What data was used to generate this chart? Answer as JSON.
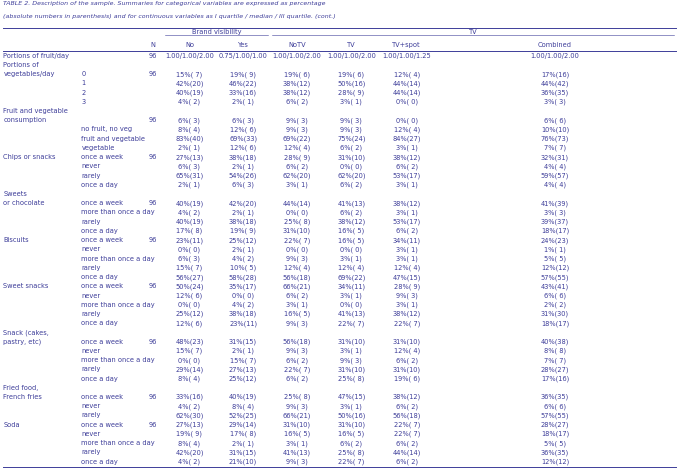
{
  "title_line1": "TABLE 2. Description of the sample. Summaries for categorical variables are expressed as percentage",
  "title_line2": "(absolute numbers in parenthesis) and for continuous variables as I quartile / median / III quartile. (cont.)",
  "rows": [
    [
      "Portions of fruit/day",
      "",
      "96",
      "1.00/1.00/2.00",
      "0.75/1.00/1.00",
      "1.00/1.00/2.00",
      "1.00/1.00/2.00",
      "1.00/1.00/1.25",
      "1.00/1.00/2.00"
    ],
    [
      "Portions of",
      "",
      "",
      "",
      "",
      "",
      "",
      "",
      ""
    ],
    [
      "vegetables/day",
      "0",
      "96",
      "15%( 7)",
      "19%( 9)",
      "19%( 6)",
      "19%( 6)",
      "12%( 4)",
      "17%(16)"
    ],
    [
      "",
      "1",
      "",
      "42%(20)",
      "46%(22)",
      "38%(12)",
      "50%(16)",
      "44%(14)",
      "44%(42)"
    ],
    [
      "",
      "2",
      "",
      "40%(19)",
      "33%(16)",
      "38%(12)",
      "28%( 9)",
      "44%(14)",
      "36%(35)"
    ],
    [
      "",
      "3",
      "",
      "4%( 2)",
      "2%( 1)",
      "6%( 2)",
      "3%( 1)",
      "0%( 0)",
      "3%( 3)"
    ],
    [
      "Fruit and vegetable",
      "",
      "",
      "",
      "",
      "",
      "",
      "",
      ""
    ],
    [
      "consumption",
      "",
      "96",
      "6%( 3)",
      "6%( 3)",
      "9%( 3)",
      "9%( 3)",
      "0%( 0)",
      "6%( 6)"
    ],
    [
      "",
      "no fruit, no veg",
      "",
      "8%( 4)",
      "12%( 6)",
      "9%( 3)",
      "9%( 3)",
      "12%( 4)",
      "10%(10)"
    ],
    [
      "",
      "fruit and vegetable",
      "",
      "83%(40)",
      "69%(33)",
      "69%(22)",
      "75%(24)",
      "84%(27)",
      "76%(73)"
    ],
    [
      "",
      "vegetable",
      "",
      "2%( 1)",
      "12%( 6)",
      "12%( 4)",
      "6%( 2)",
      "3%( 1)",
      "7%( 7)"
    ],
    [
      "Chips or snacks",
      "once a week",
      "96",
      "27%(13)",
      "38%(18)",
      "28%( 9)",
      "31%(10)",
      "38%(12)",
      "32%(31)"
    ],
    [
      "",
      "never",
      "",
      "6%( 3)",
      "2%( 1)",
      "6%( 2)",
      "0%( 0)",
      "6%( 2)",
      "4%( 4)"
    ],
    [
      "",
      "rarely",
      "",
      "65%(31)",
      "54%(26)",
      "62%(20)",
      "62%(20)",
      "53%(17)",
      "59%(57)"
    ],
    [
      "",
      "once a day",
      "",
      "2%( 1)",
      "6%( 3)",
      "3%( 1)",
      "6%( 2)",
      "3%( 1)",
      "4%( 4)"
    ],
    [
      "Sweets",
      "",
      "",
      "",
      "",
      "",
      "",
      "",
      ""
    ],
    [
      "or chocolate",
      "once a week",
      "96",
      "40%(19)",
      "42%(20)",
      "44%(14)",
      "41%(13)",
      "38%(12)",
      "41%(39)"
    ],
    [
      "",
      "more than once a day",
      "",
      "4%( 2)",
      "2%( 1)",
      "0%( 0)",
      "6%( 2)",
      "3%( 1)",
      "3%( 3)"
    ],
    [
      "",
      "rarely",
      "",
      "40%(19)",
      "38%(18)",
      "25%( 8)",
      "38%(12)",
      "53%(17)",
      "39%(37)"
    ],
    [
      "",
      "once a day",
      "",
      "17%( 8)",
      "19%( 9)",
      "31%(10)",
      "16%( 5)",
      "6%( 2)",
      "18%(17)"
    ],
    [
      "Biscuits",
      "once a week",
      "96",
      "23%(11)",
      "25%(12)",
      "22%( 7)",
      "16%( 5)",
      "34%(11)",
      "24%(23)"
    ],
    [
      "",
      "never",
      "",
      "0%( 0)",
      "2%( 1)",
      "0%( 0)",
      "0%( 0)",
      "3%( 1)",
      "1%( 1)"
    ],
    [
      "",
      "more than once a day",
      "",
      "6%( 3)",
      "4%( 2)",
      "9%( 3)",
      "3%( 1)",
      "3%( 1)",
      "5%( 5)"
    ],
    [
      "",
      "rarely",
      "",
      "15%( 7)",
      "10%( 5)",
      "12%( 4)",
      "12%( 4)",
      "12%( 4)",
      "12%(12)"
    ],
    [
      "",
      "once a day",
      "",
      "56%(27)",
      "58%(28)",
      "56%(18)",
      "69%(22)",
      "47%(15)",
      "57%(55)"
    ],
    [
      "Sweet snacks",
      "once a week",
      "96",
      "50%(24)",
      "35%(17)",
      "66%(21)",
      "34%(11)",
      "28%( 9)",
      "43%(41)"
    ],
    [
      "",
      "never",
      "",
      "12%( 6)",
      "0%( 0)",
      "6%( 2)",
      "3%( 1)",
      "9%( 3)",
      "6%( 6)"
    ],
    [
      "",
      "more than once a day",
      "",
      "0%( 0)",
      "4%( 2)",
      "3%( 1)",
      "0%( 0)",
      "3%( 1)",
      "2%( 2)"
    ],
    [
      "",
      "rarely",
      "",
      "25%(12)",
      "38%(18)",
      "16%( 5)",
      "41%(13)",
      "38%(12)",
      "31%(30)"
    ],
    [
      "",
      "once a day",
      "",
      "12%( 6)",
      "23%(11)",
      "9%( 3)",
      "22%( 7)",
      "22%( 7)",
      "18%(17)"
    ],
    [
      "Snack (cakes,",
      "",
      "",
      "",
      "",
      "",
      "",
      "",
      ""
    ],
    [
      "pastry, etc)",
      "once a week",
      "96",
      "48%(23)",
      "31%(15)",
      "56%(18)",
      "31%(10)",
      "31%(10)",
      "40%(38)"
    ],
    [
      "",
      "never",
      "",
      "15%( 7)",
      "2%( 1)",
      "9%( 3)",
      "3%( 1)",
      "12%( 4)",
      "8%( 8)"
    ],
    [
      "",
      "more than once a day",
      "",
      "0%( 0)",
      "15%( 7)",
      "6%( 2)",
      "9%( 3)",
      "6%( 2)",
      "7%( 7)"
    ],
    [
      "",
      "rarely",
      "",
      "29%(14)",
      "27%(13)",
      "22%( 7)",
      "31%(10)",
      "31%(10)",
      "28%(27)"
    ],
    [
      "",
      "once a day",
      "",
      "8%( 4)",
      "25%(12)",
      "6%( 2)",
      "25%( 8)",
      "19%( 6)",
      "17%(16)"
    ],
    [
      "Fried food,",
      "",
      "",
      "",
      "",
      "",
      "",
      "",
      ""
    ],
    [
      "French fries",
      "once a week",
      "96",
      "33%(16)",
      "40%(19)",
      "25%( 8)",
      "47%(15)",
      "38%(12)",
      "36%(35)"
    ],
    [
      "",
      "never",
      "",
      "4%( 2)",
      "8%( 4)",
      "9%( 3)",
      "3%( 1)",
      "6%( 2)",
      "6%( 6)"
    ],
    [
      "",
      "rarely",
      "",
      "62%(30)",
      "52%(25)",
      "66%(21)",
      "50%(16)",
      "56%(18)",
      "57%(55)"
    ],
    [
      "Soda",
      "once a week",
      "96",
      "27%(13)",
      "29%(14)",
      "31%(10)",
      "31%(10)",
      "22%( 7)",
      "28%(27)"
    ],
    [
      "",
      "never",
      "",
      "19%( 9)",
      "17%( 8)",
      "16%( 5)",
      "16%( 5)",
      "22%( 7)",
      "18%(17)"
    ],
    [
      "",
      "more than once a day",
      "",
      "8%( 4)",
      "2%( 1)",
      "3%( 1)",
      "6%( 2)",
      "6%( 2)",
      "5%( 5)"
    ],
    [
      "",
      "rarely",
      "",
      "42%(20)",
      "31%(15)",
      "41%(13)",
      "25%( 8)",
      "44%(14)",
      "36%(35)"
    ],
    [
      "",
      "once a day",
      "",
      "4%( 2)",
      "21%(10)",
      "9%( 3)",
      "22%( 7)",
      "6%( 2)",
      "12%(12)"
    ]
  ],
  "text_color": "#3d3d99",
  "line_color": "#3d3d99",
  "bg_color": "#ffffff",
  "font_size": 4.8,
  "col_l": [
    0.005,
    0.118,
    0.21,
    0.24,
    0.318,
    0.398,
    0.477,
    0.558,
    0.64
  ],
  "col_r": [
    0.118,
    0.21,
    0.24,
    0.318,
    0.398,
    0.477,
    0.558,
    0.64,
    0.995
  ]
}
